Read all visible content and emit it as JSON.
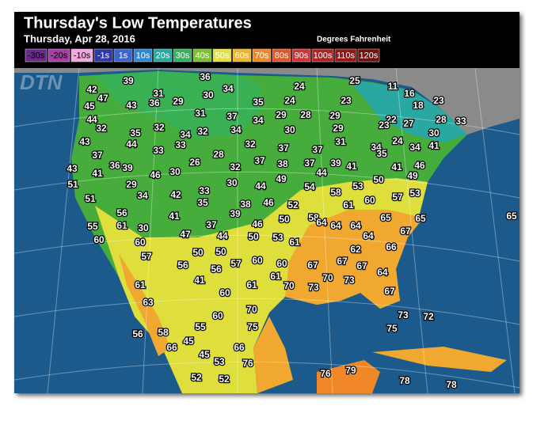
{
  "header": {
    "title": "Thursday's Low Temperatures",
    "subtitle": "Thursday, Apr 28, 2016",
    "units": "Degrees Fahrenheit"
  },
  "watermark": "DTN",
  "legend": [
    {
      "label": "-30s",
      "color": "#6a2a8c"
    },
    {
      "label": "-20s",
      "color": "#a83ca8"
    },
    {
      "label": "-10s",
      "color": "#f0a8e0"
    },
    {
      "label": "-1s",
      "color": "#3038a8"
    },
    {
      "label": "1s",
      "color": "#3c64d0"
    },
    {
      "label": "10s",
      "color": "#2c88d0"
    },
    {
      "label": "20s",
      "color": "#28a8a0"
    },
    {
      "label": "30s",
      "color": "#34b060"
    },
    {
      "label": "40s",
      "color": "#7cc030"
    },
    {
      "label": "50s",
      "color": "#e4e040"
    },
    {
      "label": "60s",
      "color": "#f0b428"
    },
    {
      "label": "70s",
      "color": "#f08828"
    },
    {
      "label": "80s",
      "color": "#e05828"
    },
    {
      "label": "90s",
      "color": "#d03434"
    },
    {
      "label": "100s",
      "color": "#b02424"
    },
    {
      "label": "110s",
      "color": "#901818"
    },
    {
      "label": "120s",
      "color": "#701010"
    }
  ],
  "temperatures": [
    42,
    39,
    36,
    34,
    24,
    25,
    11,
    16,
    47,
    31,
    30,
    35,
    24,
    23,
    23,
    18,
    45,
    43,
    36,
    29,
    44,
    31,
    37,
    34,
    29,
    28,
    29,
    22,
    23,
    27,
    28,
    33,
    32,
    35,
    32,
    34,
    32,
    34,
    30,
    29,
    30,
    43,
    44,
    33,
    33,
    32,
    37,
    37,
    31,
    34,
    35,
    24,
    34,
    41,
    37,
    28,
    36,
    39,
    26,
    32,
    37,
    38,
    37,
    39,
    41,
    41,
    46,
    43,
    41,
    46,
    30,
    44,
    49,
    51,
    29,
    30,
    44,
    49,
    54,
    53,
    50,
    57,
    53,
    51,
    34,
    42,
    33,
    35,
    38,
    46,
    52,
    58,
    61,
    60,
    56,
    41,
    39,
    50,
    58,
    65,
    65,
    65,
    55,
    61,
    30,
    37,
    46,
    64,
    64,
    64,
    67,
    60,
    60,
    47,
    44,
    50,
    53,
    61,
    64,
    66,
    57,
    50,
    50,
    60,
    62,
    56,
    56,
    57,
    60,
    67,
    67,
    67,
    61,
    70,
    73,
    64,
    41,
    61,
    70,
    73,
    61,
    63,
    60,
    67,
    70,
    60,
    73,
    72,
    55,
    75,
    58,
    75,
    56,
    45,
    66,
    66,
    45,
    53,
    76,
    52,
    52,
    76,
    79,
    78,
    78
  ]
}
